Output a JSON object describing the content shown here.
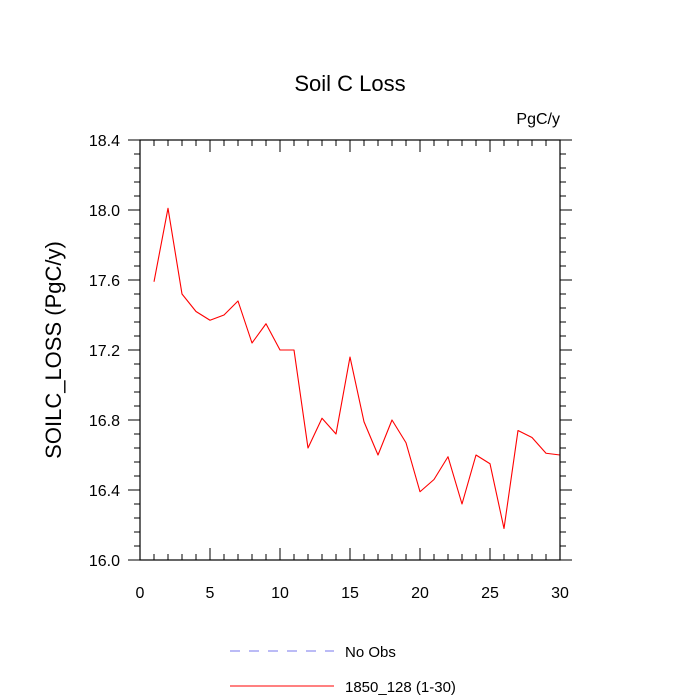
{
  "chart_data": {
    "type": "line",
    "title": "Soil C Loss",
    "units_label": "PgC/y",
    "xlabel": "",
    "ylabel": "SOILC_LOSS  (PgC/y)",
    "xlim": [
      0,
      30
    ],
    "ylim": [
      16.0,
      18.4
    ],
    "x_major_ticks": [
      0,
      5,
      10,
      15,
      20,
      25,
      30
    ],
    "x_tick_labels": [
      "0",
      "5",
      "10",
      "15",
      "20",
      "25",
      "30"
    ],
    "y_major_ticks": [
      16.0,
      16.4,
      16.8,
      17.2,
      17.6,
      18.0,
      18.4
    ],
    "y_tick_labels": [
      "16.0",
      "16.4",
      "16.8",
      "17.2",
      "17.6",
      "18.0",
      "18.4"
    ],
    "grid": false,
    "legend_position": "bottom-center",
    "series": [
      {
        "name": "1850_128 (1-30)",
        "color": "#ff0000",
        "style": "solid",
        "x": [
          1,
          2,
          3,
          4,
          5,
          6,
          7,
          8,
          9,
          10,
          11,
          12,
          13,
          14,
          15,
          16,
          17,
          18,
          19,
          20,
          21,
          22,
          23,
          24,
          25,
          26,
          27,
          28,
          29,
          30
        ],
        "y": [
          17.59,
          18.01,
          17.52,
          17.42,
          17.37,
          17.4,
          17.48,
          17.24,
          17.35,
          17.2,
          17.2,
          16.64,
          16.81,
          16.72,
          17.16,
          16.79,
          16.6,
          16.8,
          16.67,
          16.39,
          16.46,
          16.59,
          16.32,
          16.6,
          16.55,
          16.18,
          16.74,
          16.7,
          16.61,
          16.6
        ]
      }
    ],
    "legend": [
      {
        "label": "No Obs",
        "color": "#7777ee",
        "style": "dashed"
      },
      {
        "label": "1850_128 (1-30)",
        "color": "#ff0000",
        "style": "solid"
      }
    ]
  }
}
